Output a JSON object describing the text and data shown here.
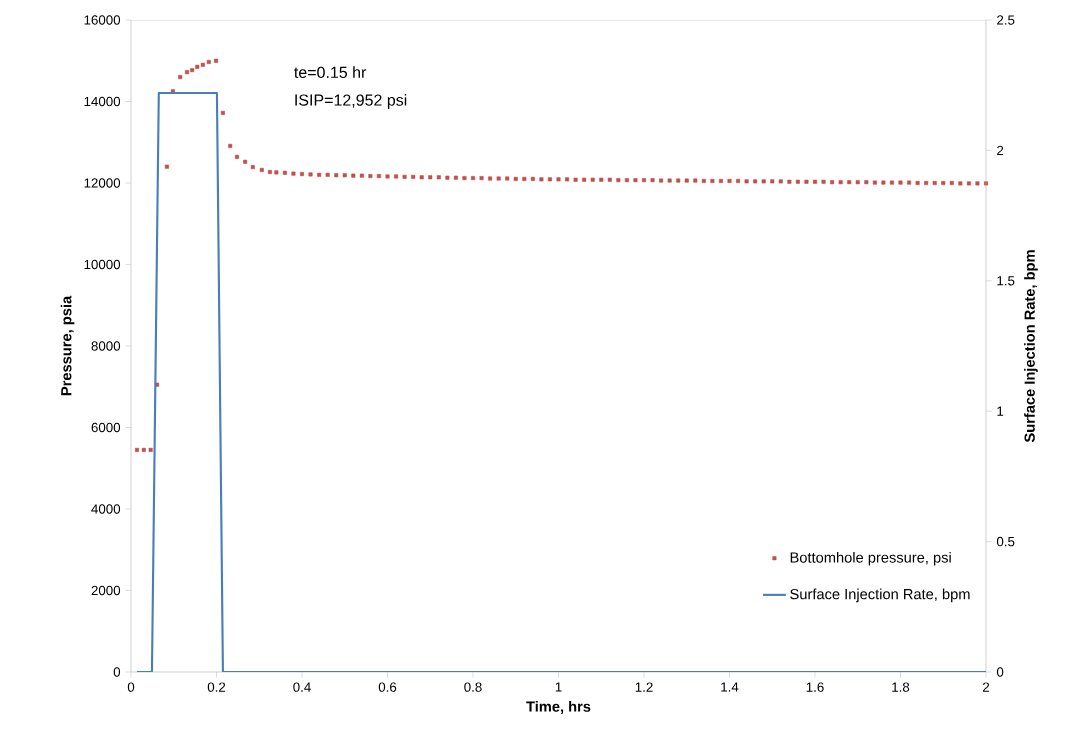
{
  "chart_data": {
    "type": "scatter",
    "xlabel": "Time, hrs",
    "ylabel": "Pressure, psia",
    "y2label": "Surface Injection Rate, bpm",
    "annotations": [
      "te=0.15 hr",
      "ISIP=12,952 psi"
    ],
    "xlim": [
      0,
      2
    ],
    "xticks": [
      0,
      0.2,
      0.4,
      0.6,
      0.8,
      1,
      1.2,
      1.4,
      1.6,
      1.8,
      2
    ],
    "ylim": [
      0,
      16000
    ],
    "yticks": [
      0,
      2000,
      4000,
      6000,
      8000,
      10000,
      12000,
      14000,
      16000
    ],
    "y2lim": [
      0,
      2.5
    ],
    "y2ticks": [
      0,
      0.5,
      1,
      1.5,
      2,
      2.5
    ],
    "legend": "bottom right",
    "series": [
      {
        "name": "Bottomhole pressure, psi",
        "marker": "square",
        "color": "#c0504d",
        "x": [
          0.014,
          0.03,
          0.046,
          0.061,
          0.084,
          0.098,
          0.115,
          0.131,
          0.143,
          0.155,
          0.168,
          0.182,
          0.199,
          0.215,
          0.232,
          0.248,
          0.267,
          0.285,
          0.306,
          0.325,
          0.34,
          0.36,
          0.38,
          0.4,
          0.42,
          0.44,
          0.46,
          0.48,
          0.5,
          0.52,
          0.54,
          0.56,
          0.58,
          0.6,
          0.62,
          0.64,
          0.66,
          0.68,
          0.7,
          0.72,
          0.74,
          0.76,
          0.78,
          0.8,
          0.82,
          0.84,
          0.86,
          0.88,
          0.9,
          0.92,
          0.94,
          0.96,
          0.98,
          1.0,
          1.02,
          1.04,
          1.06,
          1.08,
          1.1,
          1.12,
          1.14,
          1.16,
          1.18,
          1.2,
          1.22,
          1.24,
          1.26,
          1.28,
          1.3,
          1.32,
          1.34,
          1.36,
          1.38,
          1.4,
          1.42,
          1.44,
          1.46,
          1.48,
          1.5,
          1.52,
          1.54,
          1.56,
          1.58,
          1.6,
          1.62,
          1.64,
          1.66,
          1.68,
          1.7,
          1.72,
          1.74,
          1.76,
          1.78,
          1.8,
          1.82,
          1.84,
          1.86,
          1.88,
          1.9,
          1.92,
          1.94,
          1.96,
          1.98,
          2.0
        ],
        "values": [
          5450,
          5450,
          5450,
          7050,
          12400,
          14250,
          14600,
          14720,
          14770,
          14850,
          14900,
          14970,
          15000,
          13720,
          12910,
          12640,
          12520,
          12390,
          12320,
          12270,
          12260,
          12250,
          12230,
          12220,
          12210,
          12200,
          12200,
          12190,
          12190,
          12180,
          12180,
          12170,
          12170,
          12160,
          12160,
          12150,
          12150,
          12140,
          12140,
          12140,
          12130,
          12130,
          12120,
          12120,
          12120,
          12110,
          12110,
          12110,
          12100,
          12100,
          12100,
          12090,
          12090,
          12090,
          12090,
          12080,
          12080,
          12080,
          12080,
          12080,
          12070,
          12070,
          12070,
          12070,
          12070,
          12060,
          12060,
          12060,
          12060,
          12060,
          12050,
          12050,
          12050,
          12050,
          12050,
          12040,
          12040,
          12040,
          12040,
          12040,
          12030,
          12030,
          12030,
          12030,
          12030,
          12020,
          12020,
          12020,
          12020,
          12020,
          12010,
          12010,
          12010,
          12010,
          12010,
          12000,
          12000,
          12000,
          12000,
          12000,
          11990,
          11990,
          11990,
          11990
        ]
      },
      {
        "name": "Surface Injection Rate, bpm",
        "type": "line",
        "axis": "y2",
        "marker": "none",
        "line_style": "solid",
        "color": "#4a7ebb",
        "x": [
          0.014,
          0.049,
          0.065,
          0.201,
          0.215,
          2
        ],
        "values": [
          0,
          0,
          2.22,
          2.22,
          0,
          0
        ]
      }
    ]
  }
}
